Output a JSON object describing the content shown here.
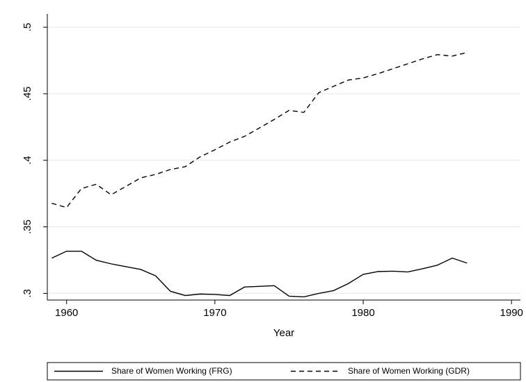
{
  "chart_data": {
    "type": "line",
    "x_label": "Year",
    "x": [
      1959,
      1960,
      1961,
      1962,
      1963,
      1964,
      1965,
      1966,
      1967,
      1968,
      1969,
      1970,
      1971,
      1972,
      1973,
      1974,
      1975,
      1976,
      1977,
      1978,
      1979,
      1980,
      1981,
      1982,
      1983,
      1984,
      1985,
      1986,
      1987
    ],
    "series": [
      {
        "name": "Share of Women Working (FRG)",
        "color": "#000000",
        "dash": "solid",
        "values": [
          0.3265,
          0.3317,
          0.3317,
          0.3249,
          0.3222,
          0.3201,
          0.318,
          0.3132,
          0.3016,
          0.2984,
          0.2995,
          0.2992,
          0.2984,
          0.3048,
          0.3053,
          0.3058,
          0.2979,
          0.2974,
          0.3,
          0.3021,
          0.3074,
          0.3143,
          0.3164,
          0.3167,
          0.3161,
          0.3185,
          0.3212,
          0.3265,
          0.3228
        ]
      },
      {
        "name": "Share of Women Working (GDR)",
        "color": "#000000",
        "dash": "dashed",
        "values": [
          0.3677,
          0.3645,
          0.3788,
          0.382,
          0.3741,
          0.3804,
          0.3868,
          0.3894,
          0.3931,
          0.3952,
          0.4026,
          0.4079,
          0.4137,
          0.418,
          0.4243,
          0.4307,
          0.4375,
          0.436,
          0.4508,
          0.4556,
          0.4603,
          0.4619,
          0.4651,
          0.4688,
          0.4725,
          0.4762,
          0.4794,
          0.4783,
          0.481
        ]
      }
    ],
    "xlim": [
      1958.7,
      1990.6
    ],
    "xticks": [
      1960,
      1970,
      1980,
      1990
    ],
    "ylim": [
      0.295,
      0.51
    ],
    "yticks": [
      {
        "value": 0.3,
        "label": ".3"
      },
      {
        "value": 0.35,
        "label": ".35"
      },
      {
        "value": 0.4,
        "label": ".4"
      },
      {
        "value": 0.45,
        "label": ".45"
      },
      {
        "value": 0.5,
        "label": ".5"
      }
    ],
    "grid": true,
    "legend": "bottom"
  }
}
